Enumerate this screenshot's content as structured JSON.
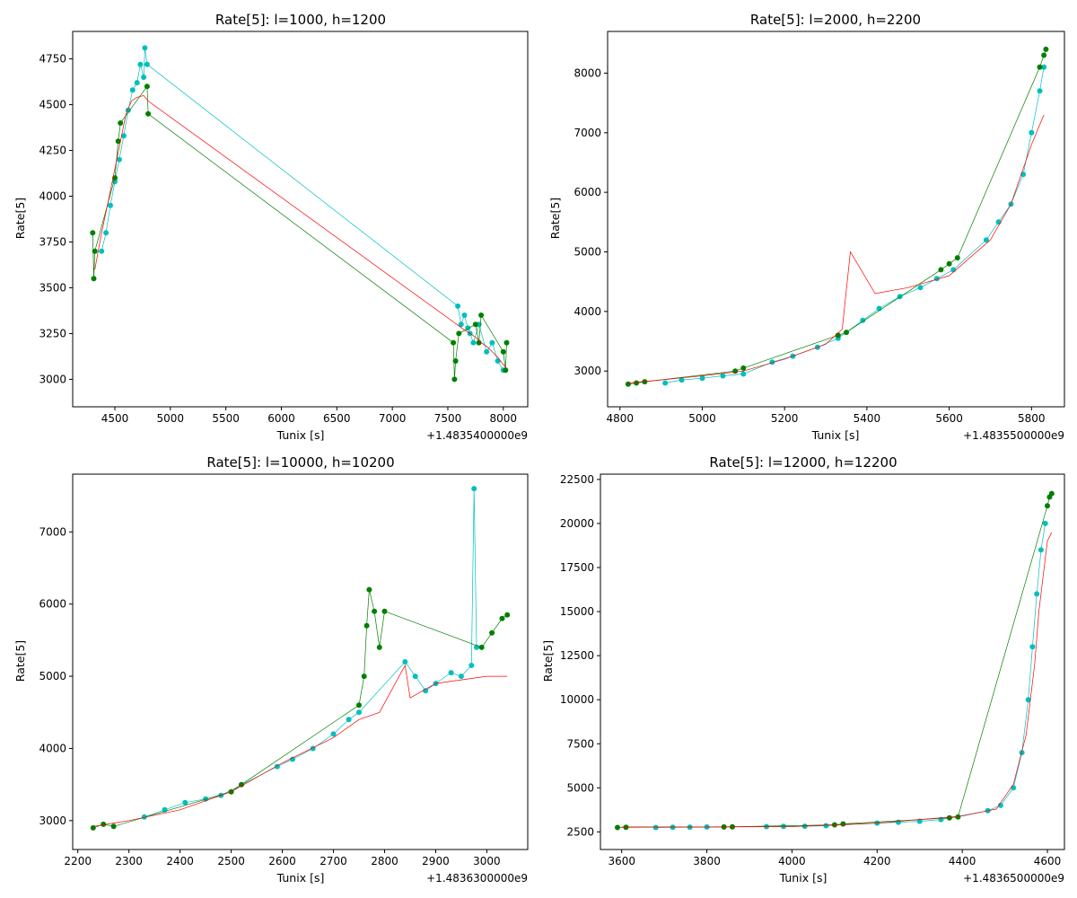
{
  "figure": {
    "colors": {
      "cyan": "#00bfbf",
      "green": "#007f00",
      "red": "#ff0000"
    }
  },
  "chart_data": [
    {
      "type": "scatter",
      "title": "Rate[5]: l=1000, h=1200",
      "xlabel": "Tunix [s]",
      "ylabel": "Rate[5]",
      "x_offset_label": "+1.4835400000e9",
      "xlim": [
        4120,
        8220
      ],
      "ylim": [
        2850,
        4900
      ],
      "xticks": [
        4500,
        5000,
        5500,
        6000,
        6500,
        7000,
        7500,
        8000
      ],
      "yticks": [
        3000,
        3250,
        3500,
        3750,
        4000,
        4250,
        4500,
        4750
      ],
      "series": [
        {
          "color": "cyan",
          "markers": true,
          "linewidth": 0.7,
          "points": [
            [
              4380,
              3700
            ],
            [
              4420,
              3800
            ],
            [
              4460,
              3950
            ],
            [
              4500,
              4080
            ],
            [
              4540,
              4200
            ],
            [
              4580,
              4330
            ],
            [
              4620,
              4470
            ],
            [
              4660,
              4580
            ],
            [
              4700,
              4620
            ],
            [
              4730,
              4720
            ],
            [
              4760,
              4650
            ],
            [
              4770,
              4810
            ],
            [
              4790,
              4720
            ],
            [
              7590,
              3400
            ],
            [
              7620,
              3300
            ],
            [
              7650,
              3350
            ],
            [
              7680,
              3280
            ],
            [
              7700,
              3250
            ],
            [
              7730,
              3200
            ],
            [
              7780,
              3300
            ],
            [
              7850,
              3150
            ],
            [
              7900,
              3200
            ],
            [
              7950,
              3100
            ],
            [
              8000,
              3050
            ]
          ]
        },
        {
          "color": "green",
          "markers": true,
          "linewidth": 0.7,
          "points": [
            [
              4300,
              3800
            ],
            [
              4310,
              3550
            ],
            [
              4320,
              3700
            ],
            [
              4500,
              4100
            ],
            [
              4530,
              4300
            ],
            [
              4550,
              4400
            ],
            [
              4790,
              4600
            ],
            [
              4800,
              4450
            ],
            [
              7550,
              3200
            ],
            [
              7560,
              3000
            ],
            [
              7570,
              3100
            ],
            [
              7600,
              3250
            ],
            [
              7750,
              3300
            ],
            [
              7780,
              3200
            ],
            [
              7800,
              3350
            ],
            [
              8000,
              3150
            ],
            [
              8020,
              3050
            ],
            [
              8030,
              3200
            ]
          ]
        },
        {
          "color": "red",
          "markers": false,
          "linewidth": 0.7,
          "points": [
            [
              4320,
              3600
            ],
            [
              4380,
              3800
            ],
            [
              4450,
              4000
            ],
            [
              4500,
              4150
            ],
            [
              4550,
              4300
            ],
            [
              4600,
              4450
            ],
            [
              4650,
              4520
            ],
            [
              4700,
              4540
            ],
            [
              4760,
              4550
            ],
            [
              4800,
              4520
            ],
            [
              7580,
              3300
            ],
            [
              7650,
              3270
            ],
            [
              7700,
              3250
            ],
            [
              7750,
              3230
            ],
            [
              7800,
              3200
            ],
            [
              7850,
              3180
            ],
            [
              7900,
              3150
            ],
            [
              7950,
              3120
            ],
            [
              8000,
              3080
            ],
            [
              8030,
              3060
            ]
          ]
        }
      ]
    },
    {
      "type": "scatter",
      "title": "Rate[5]: l=2000, h=2200",
      "xlabel": "Tunix [s]",
      "ylabel": "Rate[5]",
      "x_offset_label": "+1.4835500000e9",
      "xlim": [
        4770,
        5880
      ],
      "ylim": [
        2400,
        8700
      ],
      "xticks": [
        4800,
        5000,
        5200,
        5400,
        5600,
        5800
      ],
      "yticks": [
        3000,
        4000,
        5000,
        6000,
        7000,
        8000
      ],
      "series": [
        {
          "color": "cyan",
          "markers": true,
          "linewidth": 0.7,
          "points": [
            [
              4910,
              2800
            ],
            [
              4950,
              2850
            ],
            [
              5000,
              2880
            ],
            [
              5050,
              2920
            ],
            [
              5100,
              2950
            ],
            [
              5170,
              3150
            ],
            [
              5220,
              3250
            ],
            [
              5280,
              3400
            ],
            [
              5330,
              3550
            ],
            [
              5390,
              3850
            ],
            [
              5430,
              4050
            ],
            [
              5480,
              4250
            ],
            [
              5530,
              4400
            ],
            [
              5570,
              4550
            ],
            [
              5610,
              4700
            ],
            [
              5690,
              5200
            ],
            [
              5720,
              5500
            ],
            [
              5750,
              5800
            ],
            [
              5780,
              6300
            ],
            [
              5800,
              7000
            ],
            [
              5820,
              7700
            ],
            [
              5830,
              8100
            ]
          ]
        },
        {
          "color": "green",
          "markers": true,
          "linewidth": 0.7,
          "points": [
            [
              4820,
              2780
            ],
            [
              4840,
              2800
            ],
            [
              4860,
              2820
            ],
            [
              5080,
              3000
            ],
            [
              5100,
              3050
            ],
            [
              5330,
              3600
            ],
            [
              5350,
              3650
            ],
            [
              5580,
              4700
            ],
            [
              5600,
              4800
            ],
            [
              5620,
              4900
            ],
            [
              5820,
              8100
            ],
            [
              5830,
              8300
            ],
            [
              5835,
              8400
            ]
          ]
        },
        {
          "color": "red",
          "markers": false,
          "linewidth": 0.7,
          "points": [
            [
              4820,
              2800
            ],
            [
              4900,
              2850
            ],
            [
              5000,
              2920
            ],
            [
              5100,
              3000
            ],
            [
              5200,
              3200
            ],
            [
              5300,
              3450
            ],
            [
              5340,
              3700
            ],
            [
              5360,
              5000
            ],
            [
              5420,
              4300
            ],
            [
              5500,
              4400
            ],
            [
              5600,
              4600
            ],
            [
              5700,
              5200
            ],
            [
              5750,
              5800
            ],
            [
              5800,
              6800
            ],
            [
              5830,
              7300
            ]
          ]
        }
      ]
    },
    {
      "type": "scatter",
      "title": "Rate[5]: l=10000, h=10200",
      "xlabel": "Tunix [s]",
      "ylabel": "Rate[5]",
      "x_offset_label": "+1.4836300000e9",
      "xlim": [
        2190,
        3080
      ],
      "ylim": [
        2600,
        7800
      ],
      "xticks": [
        2200,
        2300,
        2400,
        2500,
        2600,
        2700,
        2800,
        2900,
        3000
      ],
      "yticks": [
        3000,
        4000,
        5000,
        6000,
        7000
      ],
      "series": [
        {
          "color": "cyan",
          "markers": true,
          "linewidth": 0.7,
          "points": [
            [
              2330,
              3050
            ],
            [
              2370,
              3150
            ],
            [
              2410,
              3250
            ],
            [
              2450,
              3300
            ],
            [
              2480,
              3350
            ],
            [
              2590,
              3750
            ],
            [
              2620,
              3850
            ],
            [
              2660,
              4000
            ],
            [
              2700,
              4200
            ],
            [
              2730,
              4400
            ],
            [
              2750,
              4500
            ],
            [
              2840,
              5200
            ],
            [
              2860,
              5000
            ],
            [
              2880,
              4800
            ],
            [
              2900,
              4900
            ],
            [
              2930,
              5050
            ],
            [
              2950,
              5000
            ],
            [
              2970,
              5150
            ],
            [
              2975,
              7600
            ],
            [
              2980,
              5400
            ]
          ]
        },
        {
          "color": "green",
          "markers": true,
          "linewidth": 0.7,
          "points": [
            [
              2230,
              2900
            ],
            [
              2250,
              2950
            ],
            [
              2270,
              2920
            ],
            [
              2500,
              3400
            ],
            [
              2520,
              3500
            ],
            [
              2750,
              4600
            ],
            [
              2760,
              5000
            ],
            [
              2765,
              5700
            ],
            [
              2770,
              6200
            ],
            [
              2780,
              5900
            ],
            [
              2790,
              5400
            ],
            [
              2800,
              5900
            ],
            [
              2990,
              5400
            ],
            [
              3010,
              5600
            ],
            [
              3030,
              5800
            ],
            [
              3040,
              5850
            ]
          ]
        },
        {
          "color": "red",
          "markers": false,
          "linewidth": 0.7,
          "points": [
            [
              2230,
              2920
            ],
            [
              2300,
              3000
            ],
            [
              2400,
              3150
            ],
            [
              2500,
              3400
            ],
            [
              2600,
              3800
            ],
            [
              2700,
              4150
            ],
            [
              2750,
              4400
            ],
            [
              2790,
              4500
            ],
            [
              2840,
              5150
            ],
            [
              2850,
              4700
            ],
            [
              2900,
              4900
            ],
            [
              2950,
              4950
            ],
            [
              3000,
              5000
            ],
            [
              3040,
              5000
            ]
          ]
        }
      ]
    },
    {
      "type": "scatter",
      "title": "Rate[5]: l=12000, h=12200",
      "xlabel": "Tunix [s]",
      "ylabel": "Rate[5]",
      "x_offset_label": "+1.4836500000e9",
      "xlim": [
        3550,
        4640
      ],
      "ylim": [
        1500,
        22800
      ],
      "xticks": [
        3600,
        3800,
        4000,
        4200,
        4400,
        4600
      ],
      "yticks": [
        2500,
        5000,
        7500,
        10000,
        12500,
        15000,
        17500,
        20000,
        22500
      ],
      "series": [
        {
          "color": "cyan",
          "markers": true,
          "linewidth": 0.7,
          "points": [
            [
              3680,
              2750
            ],
            [
              3720,
              2760
            ],
            [
              3760,
              2770
            ],
            [
              3800,
              2780
            ],
            [
              3940,
              2800
            ],
            [
              3980,
              2810
            ],
            [
              4030,
              2820
            ],
            [
              4080,
              2850
            ],
            [
              4200,
              3000
            ],
            [
              4250,
              3050
            ],
            [
              4300,
              3100
            ],
            [
              4350,
              3200
            ],
            [
              4460,
              3700
            ],
            [
              4490,
              4000
            ],
            [
              4520,
              5000
            ],
            [
              4540,
              7000
            ],
            [
              4555,
              10000
            ],
            [
              4565,
              13000
            ],
            [
              4575,
              16000
            ],
            [
              4585,
              18500
            ],
            [
              4595,
              20000
            ]
          ]
        },
        {
          "color": "green",
          "markers": true,
          "linewidth": 0.7,
          "points": [
            [
              3590,
              2750
            ],
            [
              3610,
              2760
            ],
            [
              3840,
              2780
            ],
            [
              3860,
              2790
            ],
            [
              4100,
              2900
            ],
            [
              4120,
              2950
            ],
            [
              4370,
              3300
            ],
            [
              4390,
              3350
            ],
            [
              4600,
              21000
            ],
            [
              4605,
              21500
            ],
            [
              4610,
              21700
            ]
          ]
        },
        {
          "color": "red",
          "markers": false,
          "linewidth": 0.7,
          "points": [
            [
              3600,
              2780
            ],
            [
              3800,
              2780
            ],
            [
              4000,
              2800
            ],
            [
              4200,
              3000
            ],
            [
              4400,
              3400
            ],
            [
              4480,
              3800
            ],
            [
              4520,
              5200
            ],
            [
              4550,
              8000
            ],
            [
              4570,
              12000
            ],
            [
              4580,
              15000
            ],
            [
              4600,
              19000
            ],
            [
              4610,
              19500
            ]
          ]
        }
      ]
    }
  ]
}
